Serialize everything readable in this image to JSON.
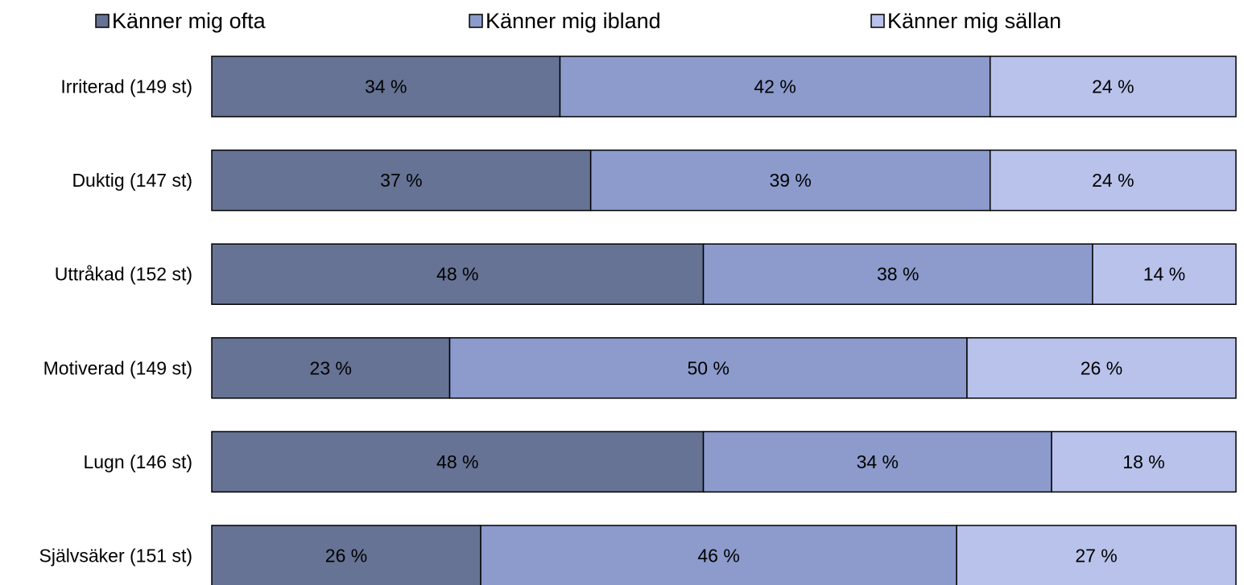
{
  "chart_data": {
    "type": "bar",
    "orientation": "horizontal",
    "stacked": "100%",
    "categories": [
      "Irriterad (149 st)",
      "Duktig (147 st)",
      "Uttråkad (152 st)",
      "Motiverad (149 st)",
      "Lugn (146 st)",
      "Självsäker (151 st)"
    ],
    "series": [
      {
        "name": "Känner mig ofta",
        "color": "#667394",
        "values": [
          34,
          37,
          48,
          23,
          48,
          26
        ],
        "labels": [
          "34 %",
          "37 %",
          "48 %",
          "23 %",
          "48 %",
          "26 %"
        ]
      },
      {
        "name": "Känner mig ibland",
        "color": "#8c9bcc",
        "values": [
          42,
          39,
          38,
          50,
          34,
          46
        ],
        "labels": [
          "42 %",
          "39 %",
          "38 %",
          "50 %",
          "34 %",
          "46 %"
        ]
      },
      {
        "name": "Känner mig sällan",
        "color": "#b8c2ea",
        "values": [
          24,
          24,
          14,
          26,
          18,
          27
        ],
        "labels": [
          "24 %",
          "24 %",
          "14 %",
          "26 %",
          "18 %",
          "27 %"
        ]
      }
    ],
    "xlim": [
      0,
      100
    ],
    "grid": false,
    "legend": "top",
    "bar_outline_color": "#000000"
  }
}
